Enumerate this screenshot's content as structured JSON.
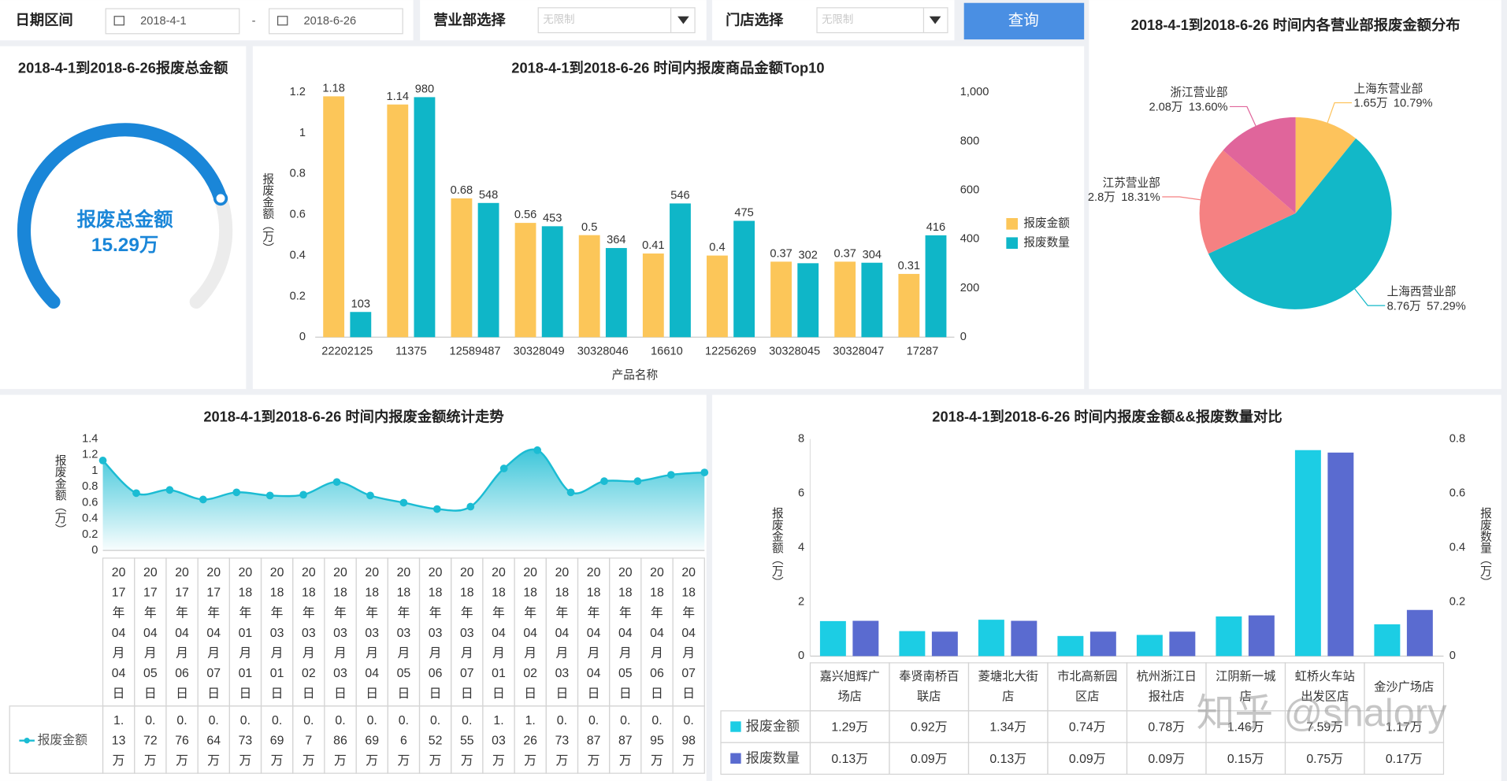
{
  "filters": {
    "date_label": "日期区间",
    "start_date": "2018-4-1",
    "separator": "-",
    "end_date": "2018-6-26",
    "department_label": "营业部选择",
    "department_value": "无限制",
    "store_label": "门店选择",
    "store_value": "无限制",
    "query_button": "查询"
  },
  "chart_data": [
    {
      "type": "gauge",
      "title": "2018-4-1到2018-6-26报废总金额",
      "label": "报废总金额",
      "value": 15.29,
      "value_label": "15.29万",
      "ylim": [
        0,
        20
      ],
      "color": "#1a86d8"
    },
    {
      "type": "bar",
      "title": "2018-4-1到2018-6-26 时间内报废商品金额Top10",
      "xlabel": "产品名称",
      "ylabel": "报废金额（万）",
      "categories": [
        "22202125",
        "11375",
        "12589487",
        "30328049",
        "30328046",
        "16610",
        "12256269",
        "30328045",
        "30328047",
        "17287"
      ],
      "series": [
        {
          "name": "报废金额",
          "color": "#fcc659",
          "values": [
            1.18,
            1.14,
            0.68,
            0.56,
            0.5,
            0.41,
            0.4,
            0.37,
            0.37,
            0.31
          ]
        },
        {
          "name": "报废数量",
          "color": "#0fb6c8",
          "axis": "y2",
          "values": [
            103,
            980,
            548,
            453,
            364,
            546,
            475,
            302,
            304,
            416
          ]
        }
      ],
      "ylim": [
        0,
        1.2
      ],
      "yticks": [
        0,
        0.2,
        0.4,
        0.6,
        0.8,
        1,
        1.2
      ],
      "y2lim": [
        0,
        1000
      ],
      "y2ticks": [
        0,
        200,
        400,
        600,
        800,
        {
          "value": 1000,
          "label": "1,000"
        }
      ],
      "legend": "right"
    },
    {
      "type": "pie",
      "title": "2018-4-1到2018-6-26 时间内各营业部报废金额分布",
      "categories": [
        "上海东营业部",
        "上海西营业部",
        "江苏营业部",
        "浙江营业部"
      ],
      "values": [
        1.65,
        8.76,
        2.8,
        2.08
      ],
      "value_labels": [
        "1.65万",
        "8.76万",
        "2.8万",
        "2.08万"
      ],
      "percent_labels": [
        "10.79%",
        "57.29%",
        "18.31%",
        "13.60%"
      ],
      "colors": [
        "#fdc35c",
        "#12b8c8",
        "#f58182",
        "#e0659b"
      ]
    },
    {
      "type": "area",
      "title": "2018-4-1到2018-6-26 时间内报废金额统计走势",
      "ylabel": "报废金额（万）",
      "categories": [
        "2017年04月04日",
        "2017年04月05日",
        "2017年04月06日",
        "2017年04月07日",
        "2018年01月01日",
        "2018年03月01日",
        "2018年03月02日",
        "2018年03月03日",
        "2018年03月04日",
        "2018年03月05日",
        "2018年03月06日",
        "2018年03月07日",
        "2018年04月01日",
        "2018年04月02日",
        "2018年04月03日",
        "2018年04月04日",
        "2018年04月05日",
        "2018年04月06日",
        "2018年04月07日"
      ],
      "series": [
        {
          "name": "报废金额",
          "color": "#1bbcd3",
          "values": [
            1.13,
            0.72,
            0.76,
            0.64,
            0.73,
            0.69,
            0.7,
            0.86,
            0.69,
            0.6,
            0.52,
            0.55,
            1.03,
            1.26,
            0.73,
            0.87,
            0.87,
            0.95,
            0.98
          ],
          "value_labels": [
            "1.13万",
            "0.72万",
            "0.76万",
            "0.64万",
            "0.73万",
            "0.69万",
            "0.7万",
            "0.86万",
            "0.69万",
            "0.6万",
            "0.52万",
            "0.55万",
            "1.03万",
            "1.26万",
            "0.73万",
            "0.87万",
            "0.87万",
            "0.95万",
            "0.98万"
          ]
        }
      ],
      "ylim": [
        0,
        1.4
      ],
      "yticks": [
        0,
        0.2,
        0.4,
        0.6,
        0.8,
        1,
        1.2,
        1.4
      ]
    },
    {
      "type": "bar_table",
      "title": "2018-4-1到2018-6-26 时间内报废金额&&报废数量对比",
      "ylabel": "报废金额（万）",
      "y2label": "报废数量（万）",
      "categories": [
        "嘉兴旭辉广场店",
        "奉贤南桥百联店",
        "菱塘北大街店",
        "市北高新园区店",
        "杭州浙江日报社店",
        "江阴新一城店",
        "虹桥火车站出发区店",
        "金沙广场店"
      ],
      "series": [
        {
          "name": "报废金额",
          "color": "#1ccde4",
          "values": [
            1.29,
            0.92,
            1.34,
            0.74,
            0.78,
            1.46,
            7.59,
            1.17
          ],
          "value_labels": [
            "1.29万",
            "0.92万",
            "1.34万",
            "0.74万",
            "0.78万",
            "1.46万",
            "7.59万",
            "1.17万"
          ]
        },
        {
          "name": "报废数量",
          "color": "#5a6bd0",
          "axis": "y2",
          "values": [
            0.13,
            0.09,
            0.13,
            0.09,
            0.09,
            0.15,
            0.75,
            0.17
          ],
          "value_labels": [
            "0.13万",
            "0.09万",
            "0.13万",
            "0.09万",
            "0.09万",
            "0.15万",
            "0.75万",
            "0.17万"
          ]
        }
      ],
      "ylim": [
        0,
        8
      ],
      "yticks": [
        0,
        2,
        4,
        6,
        8
      ],
      "y2lim": [
        0,
        0.8
      ],
      "y2ticks": [
        0,
        0.2,
        0.4,
        0.6,
        0.8
      ]
    }
  ],
  "watermark": "知乎 @shalory"
}
